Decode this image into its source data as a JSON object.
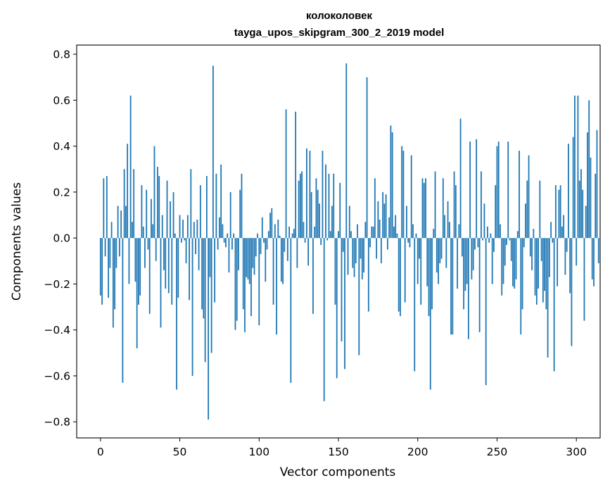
{
  "chart_data": {
    "type": "bar",
    "title": "колоколовек",
    "subtitle": "tayga_upos_skipgram_300_2_2019 model",
    "xlabel": "Vector components",
    "ylabel": "Components values",
    "xlim": [
      -15,
      315
    ],
    "ylim": [
      -0.87,
      0.84
    ],
    "xticks": [
      0,
      50,
      100,
      150,
      200,
      250,
      300
    ],
    "yticks": [
      -0.8,
      -0.6,
      -0.4,
      -0.2,
      0.0,
      0.2,
      0.4,
      0.6,
      0.8
    ],
    "ytick_labels": [
      "−0.8",
      "−0.6",
      "−0.4",
      "−0.2",
      "0.0",
      "0.2",
      "0.4",
      "0.6",
      "0.8"
    ],
    "xtick_labels": [
      "0",
      "50",
      "100",
      "150",
      "200",
      "250",
      "300"
    ],
    "bar_color": "#1f77b4",
    "grid": false,
    "values": [
      -0.25,
      -0.29,
      0.26,
      -0.08,
      0.27,
      -0.26,
      -0.13,
      0.07,
      -0.39,
      -0.31,
      -0.13,
      0.14,
      -0.08,
      0.12,
      -0.63,
      0.3,
      0.14,
      0.41,
      -0.2,
      0.62,
      0.07,
      0.3,
      -0.19,
      -0.48,
      -0.29,
      -0.25,
      0.23,
      0.05,
      -0.13,
      0.21,
      -0.05,
      -0.33,
      0.17,
      0.06,
      0.4,
      -0.1,
      0.31,
      0.27,
      -0.39,
      0.1,
      -0.14,
      -0.22,
      0.25,
      -0.24,
      0.16,
      -0.29,
      0.2,
      0.02,
      -0.66,
      -0.26,
      0.1,
      -0.02,
      0.08,
      -0.01,
      -0.11,
      0.1,
      -0.27,
      0.3,
      -0.6,
      0.07,
      -0.07,
      0.08,
      -0.14,
      0.23,
      -0.31,
      -0.35,
      -0.54,
      0.27,
      -0.79,
      -0.17,
      -0.5,
      0.75,
      -0.28,
      0.28,
      -0.05,
      0.09,
      0.32,
      0.06,
      -0.02,
      -0.04,
      0.02,
      -0.15,
      0.2,
      -0.05,
      0.02,
      -0.4,
      -0.36,
      -0.14,
      0.21,
      0.28,
      -0.31,
      -0.41,
      -0.17,
      -0.18,
      -0.2,
      -0.34,
      -0.13,
      -0.16,
      -0.08,
      0.02,
      -0.38,
      -0.07,
      0.09,
      -0.02,
      -0.19,
      -0.05,
      0.03,
      0.11,
      0.13,
      -0.29,
      0.06,
      -0.42,
      0.08,
      0.01,
      -0.19,
      -0.2,
      -0.06,
      0.56,
      -0.1,
      0.05,
      -0.63,
      0.02,
      0.04,
      0.55,
      -0.13,
      0.25,
      0.28,
      0.29,
      0.07,
      -0.02,
      0.39,
      -0.12,
      0.38,
      0.2,
      -0.33,
      0.05,
      0.26,
      0.21,
      0.15,
      -0.03,
      0.38,
      -0.71,
      0.32,
      -0.01,
      0.28,
      0.03,
      0.14,
      0.28,
      -0.29,
      -0.61,
      0.03,
      0.24,
      -0.45,
      -0.06,
      -0.57,
      0.76,
      -0.16,
      0.14,
      0.03,
      -0.13,
      -0.17,
      -0.11,
      0.06,
      -0.51,
      -0.09,
      -0.18,
      -0.15,
      0.07,
      0.7,
      -0.32,
      -0.04,
      0.05,
      0.05,
      0.26,
      -0.09,
      0.16,
      0.08,
      -0.11,
      0.2,
      0.15,
      0.19,
      -0.05,
      0.09,
      0.49,
      0.46,
      0.05,
      0.1,
      0.02,
      -0.32,
      -0.34,
      0.4,
      0.38,
      -0.28,
      0.14,
      -0.02,
      -0.04,
      0.36,
      0.06,
      -0.58,
      0.02,
      -0.2,
      -0.09,
      -0.29,
      0.26,
      0.24,
      0.26,
      -0.21,
      -0.34,
      -0.66,
      -0.31,
      0.04,
      0.29,
      -0.15,
      -0.2,
      -0.11,
      -0.09,
      0.26,
      0.1,
      -0.13,
      0.16,
      0.07,
      -0.42,
      -0.42,
      0.29,
      0.23,
      -0.22,
      0.06,
      0.52,
      -0.08,
      -0.31,
      -0.23,
      -0.2,
      -0.44,
      0.42,
      -0.18,
      -0.14,
      -0.05,
      0.43,
      -0.04,
      -0.41,
      0.29,
      -0.01,
      0.15,
      -0.64,
      0.05,
      -0.02,
      0.02,
      -0.2,
      -0.06,
      0.23,
      0.4,
      0.42,
      0.06,
      -0.25,
      -0.2,
      -0.12,
      -0.03,
      0.42,
      -0.01,
      -0.1,
      -0.21,
      -0.22,
      -0.18,
      0.03,
      0.38,
      -0.42,
      -0.31,
      -0.04,
      0.15,
      0.25,
      0.36,
      -0.08,
      -0.14,
      0.04,
      -0.25,
      -0.29,
      -0.22,
      0.25,
      -0.1,
      -0.28,
      -0.23,
      -0.31,
      -0.52,
      -0.17,
      0.07,
      -0.02,
      -0.58,
      0.23,
      -0.21,
      0.21,
      0.23,
      0.05,
      0.1,
      -0.16,
      -0.06,
      0.41,
      -0.24,
      -0.47,
      0.44,
      0.62,
      -0.12,
      0.62,
      0.25,
      0.3,
      0.21,
      -0.36,
      0.14,
      0.46,
      0.6,
      0.35,
      -0.18,
      -0.21,
      0.28,
      0.47,
      -0.11
    ]
  }
}
